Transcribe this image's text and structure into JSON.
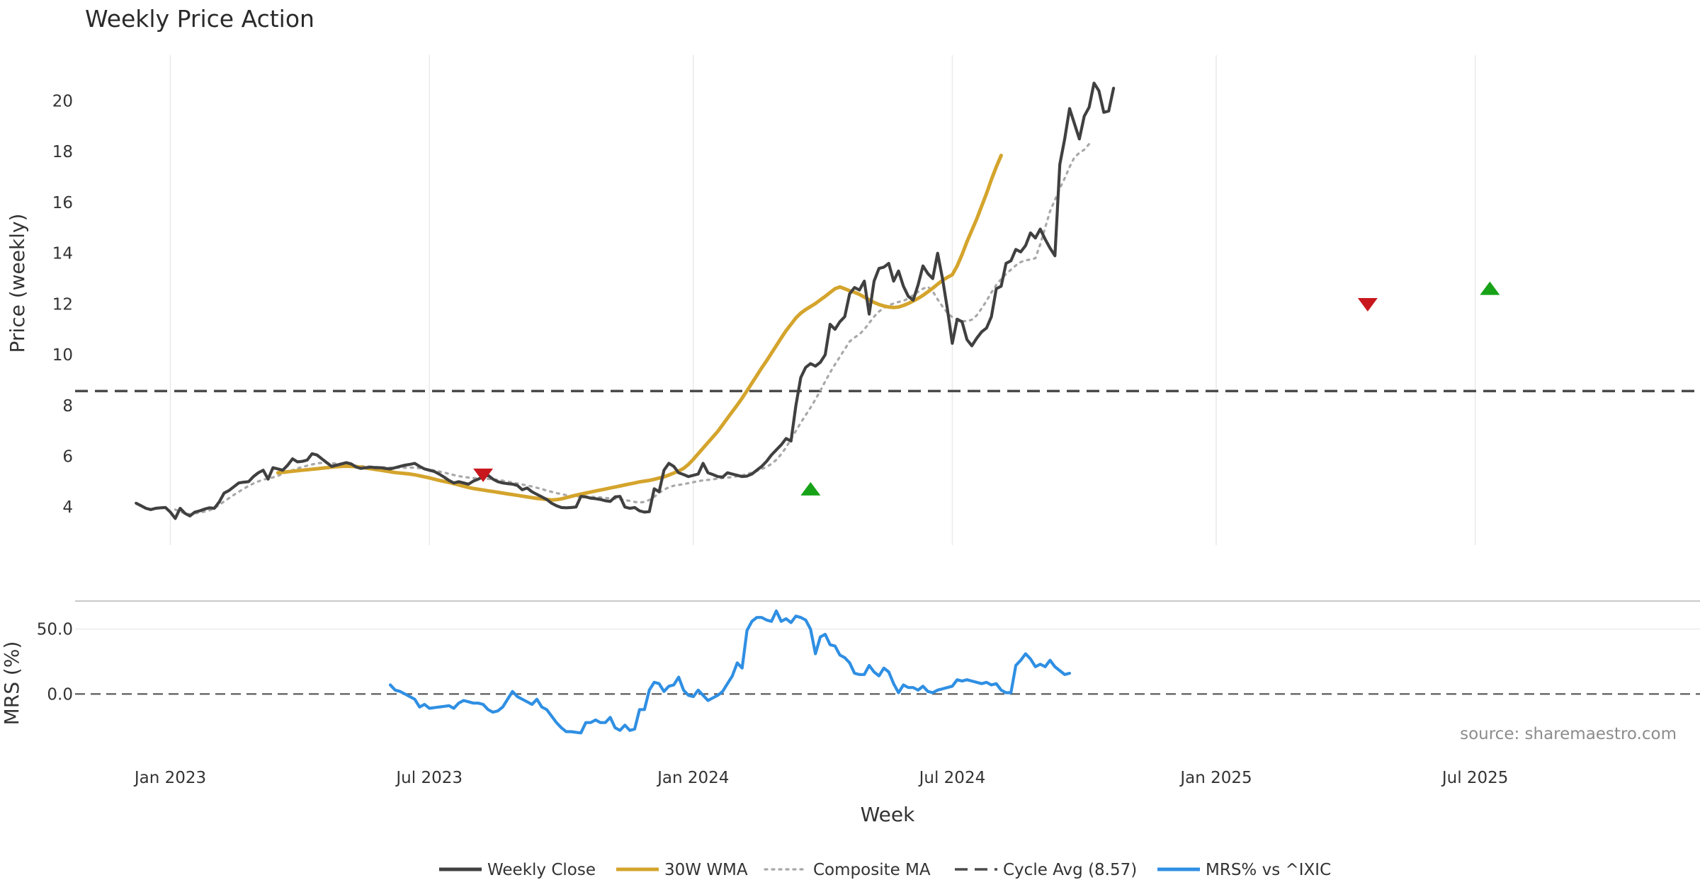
{
  "chart_data": {
    "type": "line",
    "title": "Weekly Price Action",
    "xlabel": "Week",
    "x_ticks": [
      "Jan 2023",
      "Jul 2023",
      "Jan 2024",
      "Jul 2024",
      "Jan 2025",
      "Jul 2025"
    ],
    "x_tick_weeks": [
      7,
      60,
      114,
      167,
      221,
      274
    ],
    "x_range": [
      -12.5,
      320
    ],
    "source": "source: sharemaestro.com",
    "price_panel": {
      "ylabel": "Price (weekly)",
      "y_ticks": [
        4,
        6,
        8,
        10,
        12,
        14,
        16,
        18,
        20
      ],
      "ylim": [
        2.5,
        21.8
      ],
      "cycle_avg": 8.57,
      "series": [
        {
          "name": "Weekly Close",
          "color": "#404040",
          "values": [
            4.15,
            4.05,
            3.95,
            3.9,
            3.95,
            3.97,
            3.98,
            3.8,
            3.55,
            3.95,
            3.75,
            3.65,
            3.8,
            3.85,
            3.92,
            3.97,
            3.95,
            4.2,
            4.55,
            4.65,
            4.8,
            4.95,
            4.98,
            5.0,
            5.2,
            5.35,
            5.45,
            5.1,
            5.55,
            5.5,
            5.45,
            5.65,
            5.9,
            5.78,
            5.8,
            5.85,
            6.1,
            6.05,
            5.9,
            5.75,
            5.6,
            5.65,
            5.7,
            5.75,
            5.7,
            5.58,
            5.52,
            5.55,
            5.57,
            5.55,
            5.55,
            5.52,
            5.5,
            5.55,
            5.6,
            5.65,
            5.68,
            5.72,
            5.6,
            5.5,
            5.45,
            5.4,
            5.3,
            5.18,
            5.05,
            4.95,
            5.0,
            4.95,
            4.9,
            5.02,
            5.1,
            5.2,
            5.25,
            5.1,
            5.0,
            4.95,
            4.92,
            4.9,
            4.85,
            4.68,
            4.75,
            4.6,
            4.5,
            4.4,
            4.3,
            4.15,
            4.05,
            3.98,
            3.97,
            3.98,
            4.0,
            4.42,
            4.4,
            4.35,
            4.33,
            4.3,
            4.25,
            4.22,
            4.4,
            4.42,
            4.0,
            3.95,
            3.98,
            3.85,
            3.8,
            3.82,
            4.72,
            4.6,
            5.45,
            5.72,
            5.6,
            5.35,
            5.28,
            5.2,
            5.25,
            5.3,
            5.72,
            5.35,
            5.28,
            5.2,
            5.18,
            5.35,
            5.3,
            5.25,
            5.2,
            5.22,
            5.3,
            5.45,
            5.6,
            5.8,
            6.05,
            6.25,
            6.45,
            6.7,
            6.6,
            8.0,
            9.1,
            9.5,
            9.65,
            9.55,
            9.7,
            10.0,
            11.2,
            11.0,
            11.3,
            11.5,
            12.4,
            12.65,
            12.55,
            12.9,
            11.6,
            12.9,
            13.4,
            13.45,
            13.6,
            12.9,
            13.3,
            12.7,
            12.3,
            12.15,
            12.75,
            13.5,
            13.2,
            13.0,
            14.0,
            13.0,
            11.8,
            10.45,
            11.4,
            11.3,
            10.6,
            10.35,
            10.65,
            10.9,
            11.05,
            11.5,
            12.6,
            12.7,
            13.6,
            13.7,
            14.15,
            14.05,
            14.3,
            14.8,
            14.6,
            14.95,
            14.55,
            14.2,
            13.9,
            17.5,
            18.5,
            19.7,
            19.1,
            18.5,
            19.4,
            19.75,
            20.7,
            20.4,
            19.55,
            19.6,
            20.5
          ]
        },
        {
          "name": "30W WMA",
          "color": "#d4a42c",
          "start_week": 29,
          "values": [
            5.35,
            5.37,
            5.39,
            5.41,
            5.43,
            5.45,
            5.47,
            5.49,
            5.51,
            5.53,
            5.55,
            5.57,
            5.59,
            5.6,
            5.61,
            5.6,
            5.59,
            5.57,
            5.54,
            5.51,
            5.48,
            5.45,
            5.42,
            5.39,
            5.36,
            5.34,
            5.32,
            5.3,
            5.27,
            5.23,
            5.19,
            5.15,
            5.1,
            5.05,
            5.01,
            4.97,
            4.92,
            4.87,
            4.82,
            4.77,
            4.73,
            4.7,
            4.67,
            4.64,
            4.61,
            4.58,
            4.55,
            4.52,
            4.49,
            4.46,
            4.43,
            4.4,
            4.37,
            4.34,
            4.32,
            4.3,
            4.28,
            4.29,
            4.32,
            4.37,
            4.42,
            4.47,
            4.51,
            4.55,
            4.59,
            4.63,
            4.67,
            4.71,
            4.75,
            4.79,
            4.83,
            4.87,
            4.91,
            4.95,
            4.99,
            5.02,
            5.05,
            5.09,
            5.14,
            5.19,
            5.26,
            5.34,
            5.42,
            5.52,
            5.68,
            5.88,
            6.1,
            6.32,
            6.54,
            6.76,
            6.98,
            7.24,
            7.5,
            7.76,
            8.02,
            8.29,
            8.58,
            8.88,
            9.18,
            9.48,
            9.76,
            10.06,
            10.36,
            10.66,
            10.95,
            11.2,
            11.45,
            11.64,
            11.78,
            11.9,
            12.02,
            12.16,
            12.3,
            12.45,
            12.6,
            12.67,
            12.6,
            12.52,
            12.46,
            12.38,
            12.27,
            12.16,
            12.06,
            11.98,
            11.92,
            11.88,
            11.86,
            11.88,
            11.94,
            12.02,
            12.12,
            12.22,
            12.34,
            12.48,
            12.62,
            12.78,
            12.93,
            13.05,
            13.15,
            13.5,
            13.95,
            14.45,
            14.9,
            15.35,
            15.85,
            16.35,
            16.9,
            17.4,
            17.85
          ]
        },
        {
          "name": "Composite MA",
          "color": "#a8a8a8",
          "values": [
            null,
            null,
            null,
            null,
            null,
            null,
            null,
            null,
            3.9,
            3.82,
            3.75,
            3.72,
            3.75,
            3.78,
            3.82,
            3.87,
            3.95,
            4.08,
            4.22,
            4.35,
            4.48,
            4.6,
            4.72,
            4.83,
            4.93,
            5.01,
            5.08,
            5.12,
            5.17,
            5.23,
            5.31,
            5.38,
            5.45,
            5.52,
            5.58,
            5.63,
            5.68,
            5.72,
            5.74,
            5.74,
            5.73,
            5.71,
            5.69,
            5.67,
            5.65,
            5.63,
            5.61,
            5.6,
            5.59,
            5.58,
            5.57,
            5.56,
            5.55,
            5.55,
            5.55,
            5.55,
            5.55,
            5.55,
            5.53,
            5.51,
            5.48,
            5.44,
            5.4,
            5.36,
            5.31,
            5.26,
            5.22,
            5.19,
            5.16,
            5.14,
            5.13,
            5.12,
            5.11,
            5.09,
            5.07,
            5.04,
            5.0,
            4.97,
            4.93,
            4.89,
            4.85,
            4.81,
            4.76,
            4.71,
            4.65,
            4.6,
            4.55,
            4.51,
            4.47,
            4.44,
            4.42,
            4.42,
            4.41,
            4.4,
            4.39,
            4.38,
            4.36,
            4.34,
            4.33,
            4.31,
            4.28,
            4.24,
            4.2,
            4.18,
            4.2,
            4.28,
            4.4,
            4.56,
            4.68,
            4.78,
            4.84,
            4.87,
            4.9,
            4.94,
            4.98,
            5.02,
            5.05,
            5.07,
            5.09,
            5.12,
            5.14,
            5.16,
            5.18,
            5.21,
            5.25,
            5.3,
            5.36,
            5.42,
            5.5,
            5.58,
            5.7,
            5.86,
            6.08,
            6.35,
            6.68,
            7.0,
            7.32,
            7.62,
            7.92,
            8.24,
            8.58,
            8.95,
            9.3,
            9.62,
            9.92,
            10.22,
            10.52,
            10.68,
            10.8,
            11.0,
            11.25,
            11.5,
            11.7,
            11.85,
            11.95,
            12.02,
            12.08,
            12.12,
            12.22,
            12.35,
            12.48,
            12.6,
            12.68,
            12.5,
            12.18,
            11.9,
            11.65,
            11.48,
            11.38,
            11.33,
            11.32,
            11.38,
            11.55,
            11.82,
            12.12,
            12.45,
            12.75,
            12.98,
            13.18,
            13.35,
            13.52,
            13.65,
            13.72,
            13.75,
            13.8,
            14.35,
            15.0,
            15.65,
            16.1,
            16.55,
            16.95,
            17.4,
            17.78,
            17.95,
            18.08,
            18.3
          ]
        }
      ],
      "signals": [
        {
          "type": "sell",
          "week": 71,
          "price": 5.25,
          "color": "#c8181e"
        },
        {
          "type": "buy",
          "week": 138,
          "price": 4.72,
          "color": "#17a217"
        },
        {
          "type": "sell",
          "week": 252,
          "price": 11.97,
          "color": "#c8181e"
        },
        {
          "type": "buy",
          "week": 277,
          "price": 12.62,
          "color": "#17a217"
        }
      ]
    },
    "mrs_panel": {
      "ylabel": "MRS (%)",
      "y_ticks": [
        0.0,
        50.0
      ],
      "y_tick_labels": [
        "0.0",
        "50.0"
      ],
      "ylim": [
        -50,
        70
      ],
      "series": [
        {
          "name": "MRS% vs ^IXIC",
          "color": "#2f8fe3",
          "start_week": 52,
          "values": [
            7,
            3,
            2,
            0,
            -2,
            -4,
            -10,
            -8,
            -11,
            -10.5,
            -10,
            -9.5,
            -9,
            -11,
            -7,
            -5,
            -6,
            -7,
            -7,
            -8,
            -12,
            -14,
            -13,
            -10,
            -4,
            2,
            -2,
            -4,
            -6,
            -8,
            -4,
            -10,
            -12,
            -17,
            -22,
            -26,
            -29,
            -29,
            -29.5,
            -30,
            -22,
            -22,
            -20,
            -22,
            -22,
            -18,
            -26,
            -28,
            -24,
            -28,
            -27,
            -12,
            -12,
            3,
            9,
            8,
            2,
            6,
            7,
            13,
            3,
            -1,
            -2,
            3,
            -1,
            -5,
            -3,
            -1,
            2,
            8,
            14,
            24,
            20,
            49,
            56,
            59,
            59,
            57,
            56,
            64,
            56,
            58,
            55,
            60,
            59,
            57,
            50,
            31,
            44,
            46,
            38,
            37,
            30,
            28,
            24,
            16,
            15,
            15,
            22,
            17,
            14,
            20,
            17,
            8,
            1,
            7,
            5,
            5,
            3,
            6,
            2,
            1,
            3,
            4,
            5,
            6,
            11,
            10,
            11,
            10,
            9,
            8,
            9,
            7,
            8,
            3,
            1,
            1,
            22,
            26,
            31,
            27,
            21,
            23,
            21,
            26,
            21,
            18,
            15,
            16
          ]
        }
      ]
    },
    "legend": [
      {
        "label": "Weekly Close",
        "style": "solid",
        "color": "#404040"
      },
      {
        "label": "30W WMA",
        "style": "solid",
        "color": "#d4a42c"
      },
      {
        "label": "Composite MA",
        "style": "dotted",
        "color": "#a8a8a8"
      },
      {
        "label": "Cycle Avg (8.57)",
        "style": "dashed",
        "color": "#4a4a4a"
      },
      {
        "label": "MRS% vs ^IXIC",
        "style": "solid",
        "color": "#2f8fe3"
      }
    ]
  }
}
